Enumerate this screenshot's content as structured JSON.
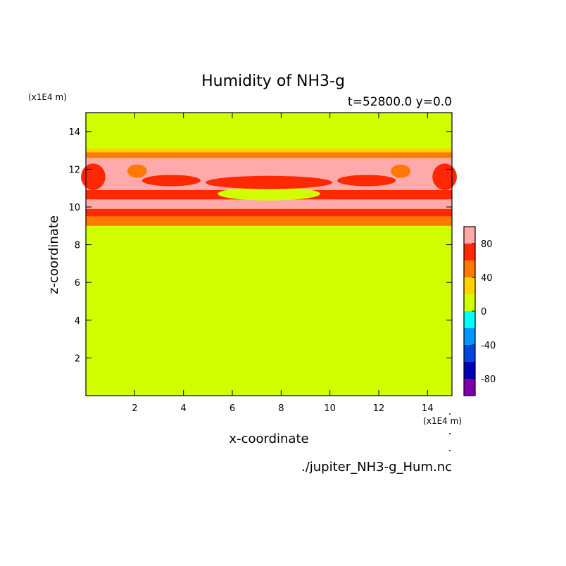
{
  "chart_data": {
    "type": "heatmap",
    "title": "Humidity of NH3-g",
    "subtitle": "t=52800.0 y=0.0",
    "xlabel": "x-coordinate",
    "ylabel": "z-coordinate",
    "x_unit": "(x1E4 m)",
    "y_unit": "(x1E4 m)",
    "source_file": "./jupiter_NH3-g_Hum.nc",
    "xlim": [
      0,
      15
    ],
    "ylim": [
      0,
      15
    ],
    "x_ticks": [
      2,
      4,
      6,
      8,
      10,
      12,
      14
    ],
    "y_ticks": [
      2,
      4,
      6,
      8,
      10,
      12,
      14
    ],
    "colorbar": {
      "levels": [
        -100,
        -80,
        -60,
        -40,
        -20,
        0,
        20,
        40,
        60,
        80,
        100
      ],
      "colors": [
        "#7e00a8",
        "#0000b4",
        "#0046dc",
        "#0096ff",
        "#00ffff",
        "#d2ff00",
        "#ffd200",
        "#ff7800",
        "#ff2800",
        "#ffaaaa"
      ],
      "tick_labels": [
        "-80",
        "-40",
        "0",
        "40",
        "80"
      ],
      "tick_values": [
        -80,
        -40,
        0,
        40,
        80
      ]
    },
    "background_value": 0,
    "bands": [
      {
        "z0": 9.0,
        "z1": 9.5,
        "value": 50
      },
      {
        "z0": 9.5,
        "z1": 9.9,
        "value": 70
      },
      {
        "z0": 9.9,
        "z1": 10.4,
        "value": 90
      },
      {
        "z0": 10.4,
        "z1": 10.9,
        "value": 70
      },
      {
        "z0": 10.9,
        "z1": 12.6,
        "value": 90
      },
      {
        "z0": 12.6,
        "z1": 12.9,
        "value": 50
      },
      {
        "z0": 12.9,
        "z1": 13.1,
        "value": 30
      }
    ],
    "features": [
      {
        "x": 7.5,
        "z": 10.7,
        "rx": 2.1,
        "rz": 0.35,
        "value": 10
      },
      {
        "x": 7.5,
        "z": 11.3,
        "rx": 2.6,
        "rz": 0.35,
        "value": 70
      },
      {
        "x": 3.5,
        "z": 11.4,
        "rx": 1.2,
        "rz": 0.3,
        "value": 70
      },
      {
        "x": 11.5,
        "z": 11.4,
        "rx": 1.2,
        "rz": 0.3,
        "value": 70
      },
      {
        "x": 0.3,
        "z": 11.6,
        "rx": 0.5,
        "rz": 0.7,
        "value": 70
      },
      {
        "x": 14.7,
        "z": 11.6,
        "rx": 0.5,
        "rz": 0.7,
        "value": 70
      },
      {
        "x": 2.1,
        "z": 11.9,
        "rx": 0.4,
        "rz": 0.35,
        "value": 50
      },
      {
        "x": 12.9,
        "z": 11.9,
        "rx": 0.4,
        "rz": 0.35,
        "value": 50
      }
    ]
  }
}
